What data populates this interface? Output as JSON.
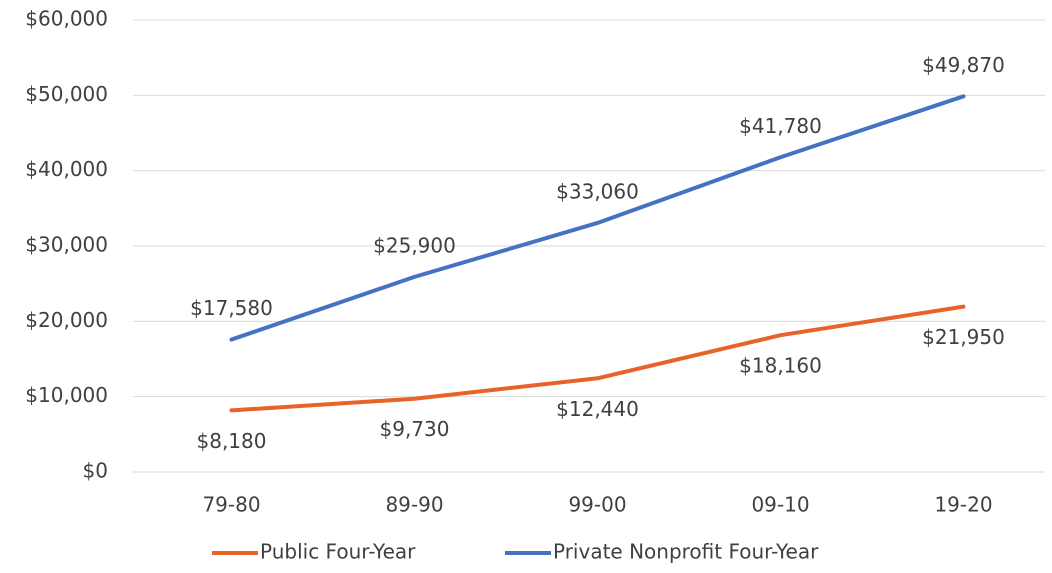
{
  "chart_data": {
    "type": "line",
    "categories": [
      "79-80",
      "89-90",
      "99-00",
      "09-10",
      "19-20"
    ],
    "series": [
      {
        "name": "Public Four-Year",
        "color": "#e8622a",
        "values": [
          8180,
          9730,
          12440,
          18160,
          21950
        ],
        "value_labels": [
          "$8,180",
          "$9,730",
          "$12,440",
          "$18,160",
          "$21,950"
        ]
      },
      {
        "name": "Private Nonprofit Four-Year",
        "color": "#4472c4",
        "values": [
          17580,
          25900,
          33060,
          41780,
          49870
        ],
        "value_labels": [
          "$17,580",
          "$25,900",
          "$33,060",
          "$41,780",
          "$49,870"
        ]
      }
    ],
    "ylim": [
      0,
      60000
    ],
    "yticks": [
      {
        "value": 0,
        "label": "$0"
      },
      {
        "value": 10000,
        "label": "$10,000"
      },
      {
        "value": 20000,
        "label": "$20,000"
      },
      {
        "value": 30000,
        "label": "$30,000"
      },
      {
        "value": 40000,
        "label": "$40,000"
      },
      {
        "value": 50000,
        "label": "$50,000"
      },
      {
        "value": 60000,
        "label": "$60,000"
      }
    ],
    "grid": true,
    "legend": "bottom"
  }
}
